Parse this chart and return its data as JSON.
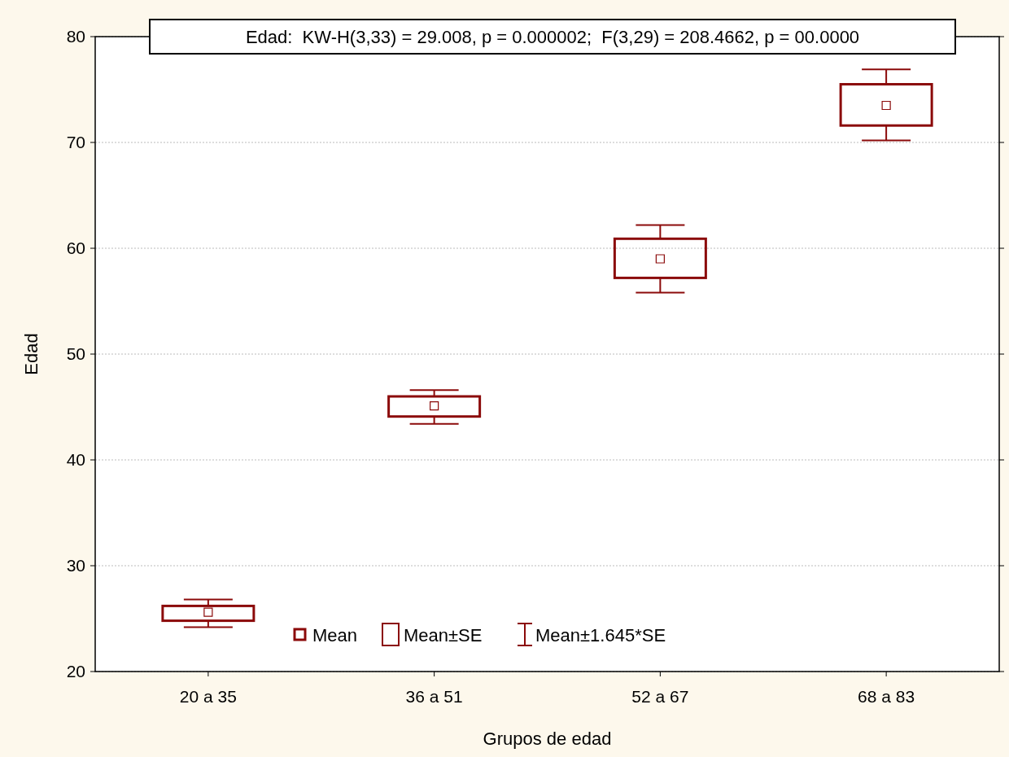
{
  "chart_data": {
    "type": "box",
    "title": "Edad:  KW-H(3,33) = 29.008, p = 0.000002;  F(3,29) = 208.4662, p = 00.0000",
    "xlabel": "Grupos de edad",
    "ylabel": "Edad",
    "categories": [
      "20 a 35",
      "36 a 51",
      "52 a 67",
      "68 a 83"
    ],
    "boxes": [
      {
        "low": 24.2,
        "q1": 24.8,
        "q3": 26.2,
        "high": 26.8,
        "mean": 25.6
      },
      {
        "low": 43.4,
        "q1": 44.1,
        "q3": 46.0,
        "high": 46.6,
        "mean": 45.1
      },
      {
        "low": 55.8,
        "q1": 57.2,
        "q3": 60.9,
        "high": 62.2,
        "mean": 59.0
      },
      {
        "low": 70.2,
        "q1": 71.6,
        "q3": 75.5,
        "high": 76.9,
        "mean": 73.5
      }
    ],
    "color": "#8b0a0a",
    "ylim": [
      20,
      80
    ],
    "yticks": [
      20,
      30,
      40,
      50,
      60,
      70,
      80
    ],
    "grid": "y",
    "annotations": [
      "Mean",
      "Mean±SE",
      "Mean±1.645*SE"
    ]
  }
}
